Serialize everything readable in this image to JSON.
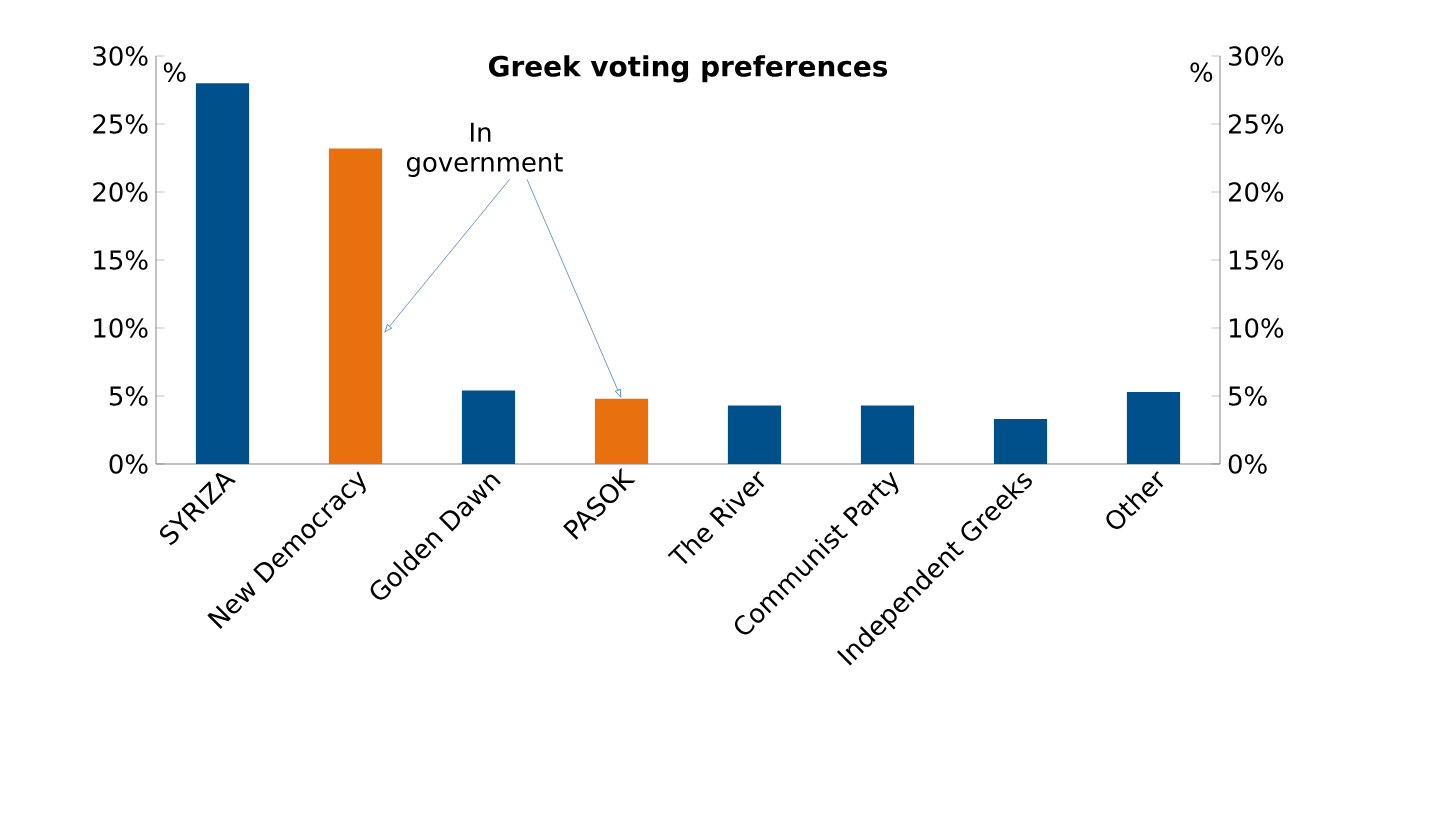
{
  "chart_data": {
    "type": "bar",
    "title": "Greek voting preferences",
    "categories": [
      "SYRIZA",
      "New Democracy",
      "Golden Dawn",
      "PASOK",
      "The River",
      "Communist Party",
      "Independent Greeks",
      "Other"
    ],
    "values": [
      28,
      23.2,
      5.4,
      4.8,
      4.3,
      4.3,
      3.3,
      5.3
    ],
    "colors": [
      "#00508c",
      "#e8700f",
      "#00508c",
      "#e8700f",
      "#00508c",
      "#00508c",
      "#00508c",
      "#00508c"
    ],
    "ylabel": "%",
    "y2label": "%",
    "ylim": [
      0,
      30
    ],
    "yticks": [
      {
        "value": 0,
        "label": "0%"
      },
      {
        "value": 5,
        "label": "5%"
      },
      {
        "value": 10,
        "label": "10%"
      },
      {
        "value": 15,
        "label": "15%"
      },
      {
        "value": 20,
        "label": "20%"
      },
      {
        "value": 25,
        "label": "25%"
      },
      {
        "value": 30,
        "label": "30%"
      }
    ],
    "y2lim": [
      0,
      30
    ],
    "y2ticks": [
      {
        "value": 0,
        "label": "0%"
      },
      {
        "value": 5,
        "label": "5%"
      },
      {
        "value": 10,
        "label": "10%"
      },
      {
        "value": 15,
        "label": "15%"
      },
      {
        "value": 20,
        "label": "20%"
      },
      {
        "value": 25,
        "label": "25%"
      },
      {
        "value": 30,
        "label": "30%"
      }
    ],
    "annotations": [
      {
        "text": "In government",
        "x": "PASOK",
        "y": 4.8
      }
    ],
    "grid": false
  }
}
